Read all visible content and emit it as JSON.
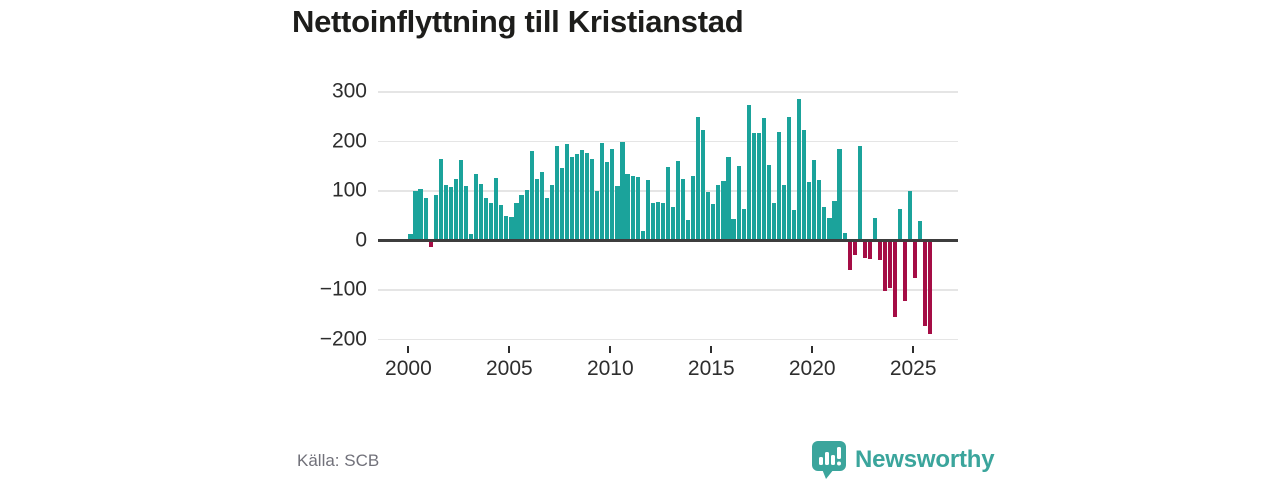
{
  "header": {
    "title": "Nettoinflyttning till Kristianstad"
  },
  "footer": {
    "source": "Källa: SCB",
    "brand": "Newsworthy"
  },
  "colors": {
    "positive_bar": "#1ba39b",
    "negative_bar": "#a50d45",
    "brand_teal": "#3ba59c",
    "axis_line": "#3d3d3d",
    "gridline": "#e5e5e5",
    "tick_text": "#2e2e2e",
    "source_text": "#71717a",
    "title_text": "#1d1d1b"
  },
  "chart_data": {
    "type": "bar",
    "title": "Nettoinflyttning till Kristianstad",
    "xlabel": "",
    "ylabel": "",
    "ylim": [
      -200,
      300
    ],
    "grid": "horizontal-only",
    "legend": "none",
    "y_ticks": [
      300,
      200,
      100,
      0,
      -100,
      -200
    ],
    "y_tick_labels": [
      "300",
      "200",
      "100",
      "0",
      "−100",
      "−200"
    ],
    "x_tick_years": [
      2000,
      2005,
      2010,
      2015,
      2020,
      2025
    ],
    "x_tick_labels": [
      "2000",
      "2005",
      "2010",
      "2015",
      "2020",
      "2025"
    ],
    "frequency": "quarterly",
    "periods": [
      "2000Q1",
      "2000Q2",
      "2000Q3",
      "2000Q4",
      "2001Q1",
      "2001Q2",
      "2001Q3",
      "2001Q4",
      "2002Q1",
      "2002Q2",
      "2002Q3",
      "2002Q4",
      "2003Q1",
      "2003Q2",
      "2003Q3",
      "2003Q4",
      "2004Q1",
      "2004Q2",
      "2004Q3",
      "2004Q4",
      "2005Q1",
      "2005Q2",
      "2005Q3",
      "2005Q4",
      "2006Q1",
      "2006Q2",
      "2006Q3",
      "2006Q4",
      "2007Q1",
      "2007Q2",
      "2007Q3",
      "2007Q4",
      "2008Q1",
      "2008Q2",
      "2008Q3",
      "2008Q4",
      "2009Q1",
      "2009Q2",
      "2009Q3",
      "2009Q4",
      "2010Q1",
      "2010Q2",
      "2010Q3",
      "2010Q4",
      "2011Q1",
      "2011Q2",
      "2011Q3",
      "2011Q4",
      "2012Q1",
      "2012Q2",
      "2012Q3",
      "2012Q4",
      "2013Q1",
      "2013Q2",
      "2013Q3",
      "2013Q4",
      "2014Q1",
      "2014Q2",
      "2014Q3",
      "2014Q4",
      "2015Q1",
      "2015Q2",
      "2015Q3",
      "2015Q4",
      "2016Q1",
      "2016Q2",
      "2016Q3",
      "2016Q4",
      "2017Q1",
      "2017Q2",
      "2017Q3",
      "2017Q4",
      "2018Q1",
      "2018Q2",
      "2018Q3",
      "2018Q4",
      "2019Q1",
      "2019Q2",
      "2019Q3",
      "2019Q4",
      "2020Q1",
      "2020Q2",
      "2020Q3",
      "2020Q4",
      "2021Q1",
      "2021Q2",
      "2021Q3",
      "2021Q4",
      "2022Q1",
      "2022Q2",
      "2022Q3",
      "2022Q4",
      "2023Q1",
      "2023Q2",
      "2023Q3",
      "2023Q4",
      "2024Q1",
      "2024Q2",
      "2024Q3",
      "2024Q4",
      "2025Q1",
      "2025Q2",
      "2025Q3",
      "2025Q4"
    ],
    "values": [
      14,
      100,
      105,
      86,
      -13,
      92,
      164,
      113,
      108,
      124,
      162,
      111,
      14,
      134,
      114,
      85,
      75,
      126,
      71,
      49,
      47,
      76,
      92,
      103,
      181,
      124,
      139,
      85,
      113,
      191,
      147,
      195,
      169,
      174,
      183,
      177,
      164,
      101,
      196,
      158,
      184,
      110,
      199,
      134,
      130,
      128,
      19,
      122,
      76,
      78,
      75,
      149,
      68,
      160,
      124,
      41,
      130,
      250,
      223,
      98,
      74,
      112,
      120,
      169,
      44,
      151,
      63,
      274,
      217,
      218,
      247,
      153,
      76,
      220,
      112,
      250,
      61,
      286,
      224,
      119,
      163,
      122,
      68,
      45,
      80,
      184,
      15,
      -59,
      -30,
      191,
      -36,
      -38,
      45,
      -40,
      -103,
      -96,
      -155,
      64,
      -122,
      101,
      -76,
      40,
      -172,
      -189
    ]
  }
}
